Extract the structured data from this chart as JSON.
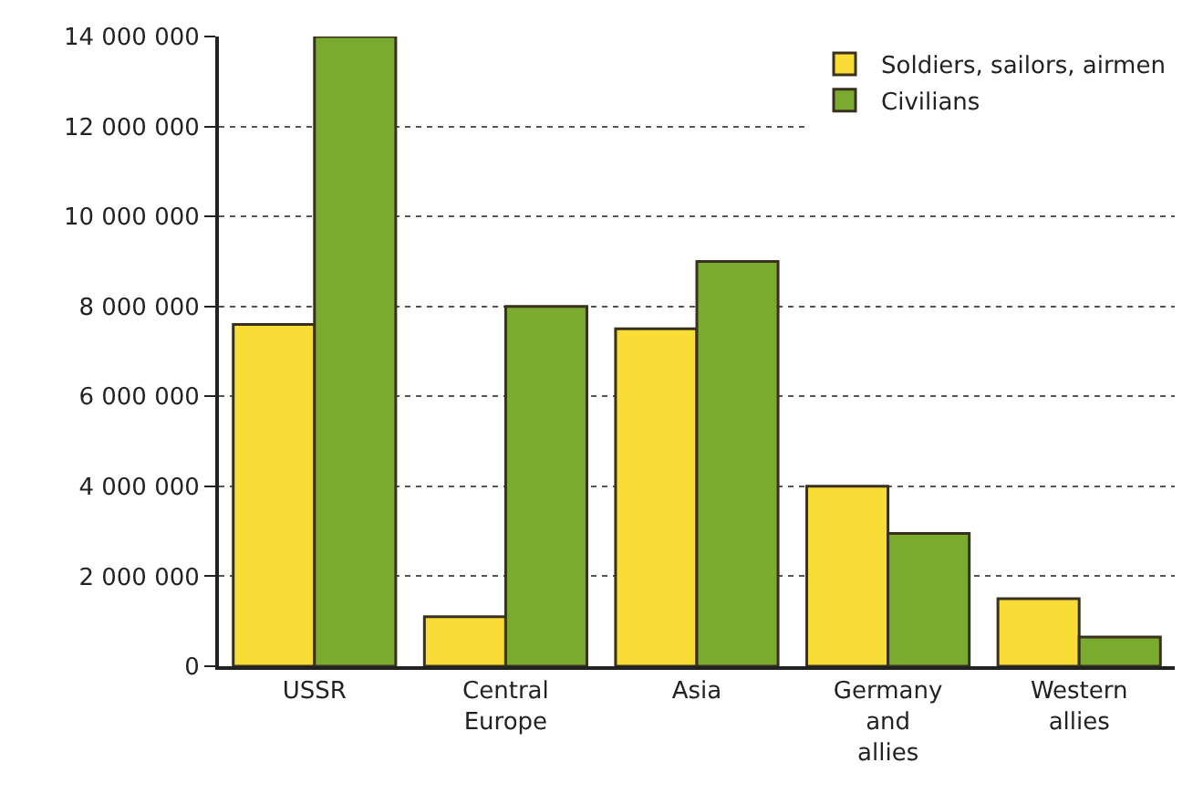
{
  "chart_data": {
    "type": "bar",
    "categories": [
      "USSR",
      "Central Europe",
      "Asia",
      "Germany and allies",
      "Western allies"
    ],
    "series": [
      {
        "name": "Soldiers, sailors, airmen",
        "color": "#f9dc35",
        "values": [
          7600000,
          1100000,
          7500000,
          4000000,
          1500000
        ]
      },
      {
        "name": "Civilians",
        "color": "#7aab2e",
        "values": [
          14000000,
          8000000,
          9000000,
          2950000,
          650000
        ]
      }
    ],
    "ylim": [
      0,
      14000000
    ],
    "yticks": [
      {
        "value": 0,
        "label": "0"
      },
      {
        "value": 2000000,
        "label": "2 000 000"
      },
      {
        "value": 4000000,
        "label": "4 000 000"
      },
      {
        "value": 6000000,
        "label": "6 000 000"
      },
      {
        "value": 8000000,
        "label": "8 000 000"
      },
      {
        "value": 10000000,
        "label": "10 000 000"
      },
      {
        "value": 12000000,
        "label": "12 000 000"
      },
      {
        "value": 14000000,
        "label": "14 000 000"
      }
    ],
    "grid": "y",
    "legend": "top right"
  }
}
